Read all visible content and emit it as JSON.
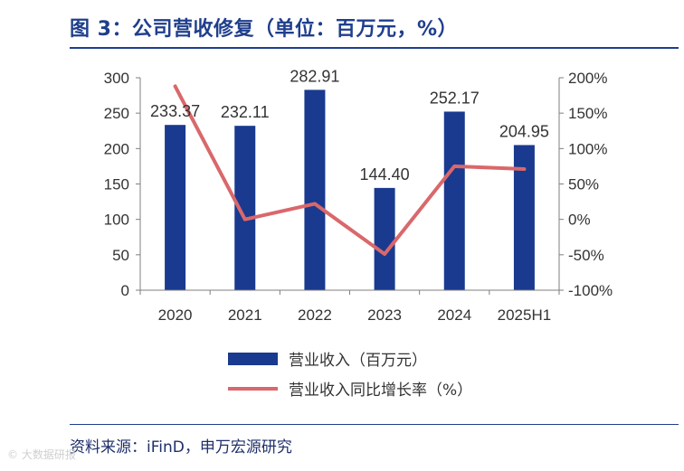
{
  "figure": {
    "title": "图 3：公司营收修复（单位：百万元，%）",
    "source": "资料来源：iFinD，申万宏源研究",
    "watermark": "© 大数据研报"
  },
  "colors": {
    "title": "#1f3e8c",
    "bar": "#1a3a8f",
    "line": "#d9686b",
    "axis": "#7f7f7f",
    "text": "#333333"
  },
  "chart_data": {
    "type": "bar+line",
    "categories": [
      "2020",
      "2021",
      "2022",
      "2023",
      "2024",
      "2025H1"
    ],
    "series": [
      {
        "name": "营业收入（百万元）",
        "type": "bar",
        "axis": "left",
        "values": [
          233.37,
          232.11,
          282.91,
          144.4,
          252.17,
          204.95
        ],
        "labels": [
          "233.37",
          "232.11",
          "282.91",
          "144.40",
          "252.17",
          "204.95"
        ]
      },
      {
        "name": "营业收入同比增长率（%）",
        "type": "line",
        "axis": "right",
        "values": [
          188,
          0,
          22,
          -49,
          75,
          71
        ]
      }
    ],
    "left_axis": {
      "ylim": [
        0,
        300
      ],
      "ticks": [
        0,
        50,
        100,
        150,
        200,
        250,
        300
      ],
      "tick_labels": [
        "0",
        "50",
        "100",
        "150",
        "200",
        "250",
        "300"
      ]
    },
    "right_axis": {
      "ylim": [
        -100,
        200
      ],
      "ticks": [
        -100,
        -50,
        0,
        50,
        100,
        150,
        200
      ],
      "tick_labels": [
        "-100%",
        "-50%",
        "0%",
        "50%",
        "100%",
        "150%",
        "200%"
      ]
    },
    "legend_position": "bottom",
    "grid": false
  }
}
